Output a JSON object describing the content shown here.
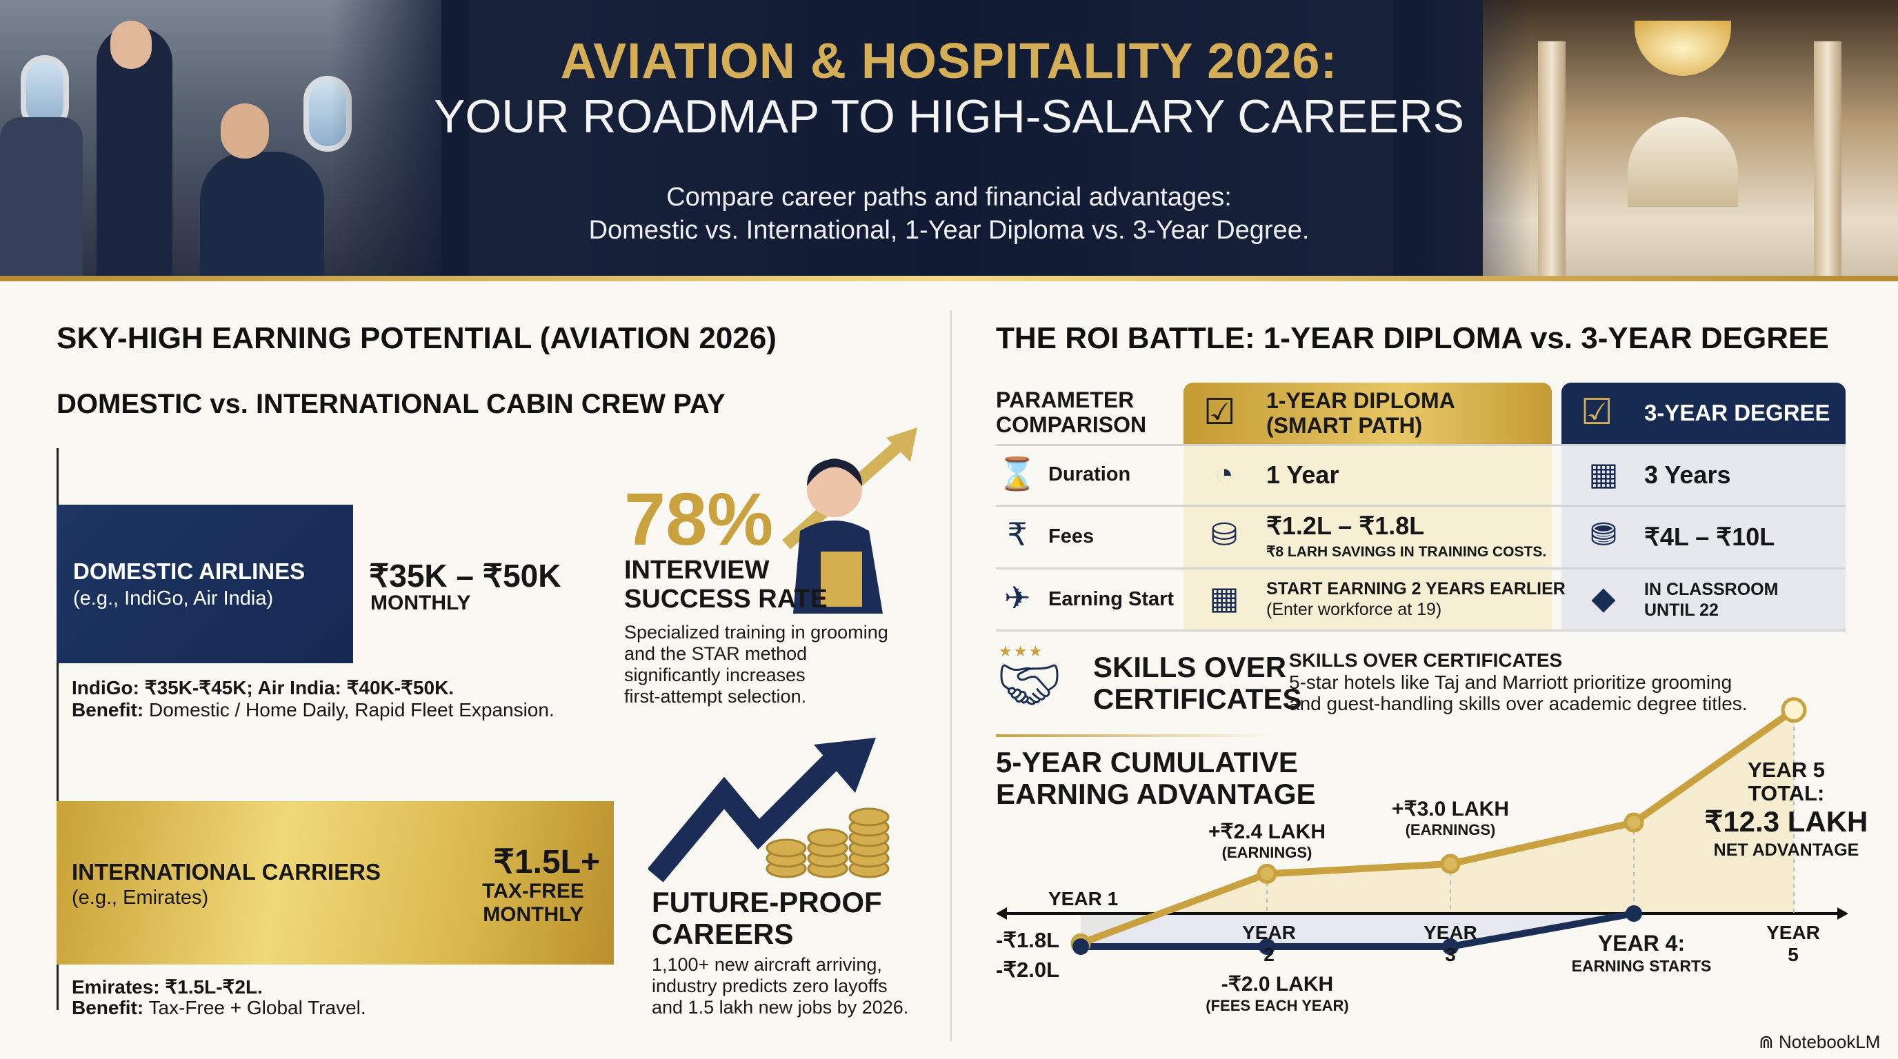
{
  "header": {
    "title_line1": "AVIATION & HOSPITALITY 2026:",
    "title_line2": "YOUR ROADMAP TO HIGH-SALARY CAREERS",
    "subtitle_line1": "Compare career paths and financial advantages:",
    "subtitle_line2": "Domestic vs. International, 1-Year Diploma vs. 3-Year Degree."
  },
  "left": {
    "section_title": "SKY-HIGH EARNING POTENTIAL (AVIATION 2026)",
    "subsection_title": "DOMESTIC vs. INTERNATIONAL CABIN CREW PAY",
    "domestic": {
      "name": "DOMESTIC AIRLINES",
      "examples": "(e.g., IndiGo, Air India)",
      "pay": "₹35K – ₹50K",
      "period": "MONTHLY",
      "detail": "IndiGo: ₹35K-₹45K; Air India: ₹40K-₹50K.",
      "benefit_label": "Benefit:",
      "benefit": "Domestic / Home Daily, Rapid Fleet Expansion."
    },
    "international": {
      "name": "INTERNATIONAL CARRIERS",
      "examples": "(e.g., Emirates)",
      "pay": "₹1.5L+",
      "period_line1": "TAX-FREE",
      "period_line2": "MONTHLY",
      "detail": "Emirates: ₹1.5L-₹2L.",
      "benefit_label": "Benefit:",
      "benefit": "Tax-Free + Global Travel."
    },
    "interview": {
      "stat": "78%",
      "title_line1": "INTERVIEW",
      "title_line2": "SUCCESS RATE",
      "desc": [
        "Specialized training in grooming",
        "and the STAR method",
        "significantly increases",
        "first-attempt selection."
      ]
    },
    "future": {
      "title_line1": "FUTURE-PROOF",
      "title_line2": "CAREERS",
      "desc": [
        "1,100+ new aircraft arriving,",
        "industry predicts zero layoffs",
        "and 1.5 lakh new jobs by 2026."
      ]
    }
  },
  "right": {
    "section_title": "THE ROI BATTLE: 1-YEAR DIPLOMA vs. 3-YEAR DEGREE",
    "table": {
      "param_header_line1": "PARAMETER",
      "param_header_line2": "COMPARISON",
      "diploma_header_line1": "1-YEAR DIPLOMA",
      "diploma_header_line2": "(SMART PATH)",
      "degree_header": "3-YEAR DEGREE",
      "rows": [
        {
          "param": "Duration",
          "param_icon": "hourglass-icon",
          "diploma": "1 Year",
          "diploma_icon": "stopwatch-icon",
          "degree": "3 Years",
          "degree_icon": "calendar-icon"
        },
        {
          "param": "Fees",
          "param_icon": "rupee-hand-icon",
          "diploma": "₹1.2L – ₹1.8L",
          "diploma_note": "₹8 LARH SAVINGS IN TRAINING COSTS.",
          "diploma_icon": "coins-icon",
          "degree": "₹4L – ₹10L",
          "degree_icon": "coin-stacks-icon"
        },
        {
          "param": "Earning Start",
          "param_icon": "earning-plane-icon",
          "diploma": "START EARNING 2 YEARS EARLIER",
          "diploma_note": "(Enter workforce at 19)",
          "diploma_icon": "calendar-clock-icon",
          "degree": "IN CLASSROOM",
          "degree_line2": "UNTIL 22",
          "degree_icon": "graduation-cap-icon"
        }
      ]
    },
    "skills": {
      "big_line1": "SKILLS OVER",
      "big_line2": "CERTIFICATES",
      "heading": "SKILLS OVER CERTIFICATES",
      "desc_line1": "5-star hotels like Taj and Marriott prioritize grooming",
      "desc_line2": "and guest-handling skills over academic degree titles."
    }
  },
  "chart_data": {
    "type": "line",
    "title_line1": "5-YEAR CUMULATIVE",
    "title_line2": "EARNING ADVANTAGE",
    "categories": [
      "YEAR 1",
      "YEAR 2",
      "YEAR 3",
      "YEAR 4",
      "YEAR 5"
    ],
    "category_labels": [
      "YEAR 1",
      "YEAR 2",
      "YEAR 3",
      "YEAR 4:",
      "YEAR 5"
    ],
    "year4_sub": "EARNING STARTS",
    "series": [
      {
        "values": [
          -1.8,
          2.4,
          3.0,
          5.5,
          12.3
        ],
        "color": "#c9a23f"
      },
      {
        "values": [
          -2.0,
          -2.0,
          -2.0,
          0,
          null
        ],
        "color": "#1a2d55"
      }
    ],
    "annotations": {
      "gold_start": "-₹1.8L",
      "navy_start": "-₹2.0L",
      "y2_value": "+₹2.4 LAKH",
      "y2_note": "(EARNINGS)",
      "y3_value": "+₹3.0 LAKH",
      "y3_note": "(EARNINGS)",
      "fees_value": "-₹2.0 LAKH",
      "fees_note": "(FEES EACH YEAR)",
      "total_line1": "YEAR 5",
      "total_line2": "TOTAL:",
      "total_value": "₹12.3 LAKH",
      "total_note": "NET ADVANTAGE"
    },
    "unit": "lakh"
  },
  "footer": {
    "brand": "NotebookLM"
  },
  "colors": {
    "navy": "#1a2d55",
    "gold": "#c9a23f",
    "background": "#faf8f3"
  }
}
